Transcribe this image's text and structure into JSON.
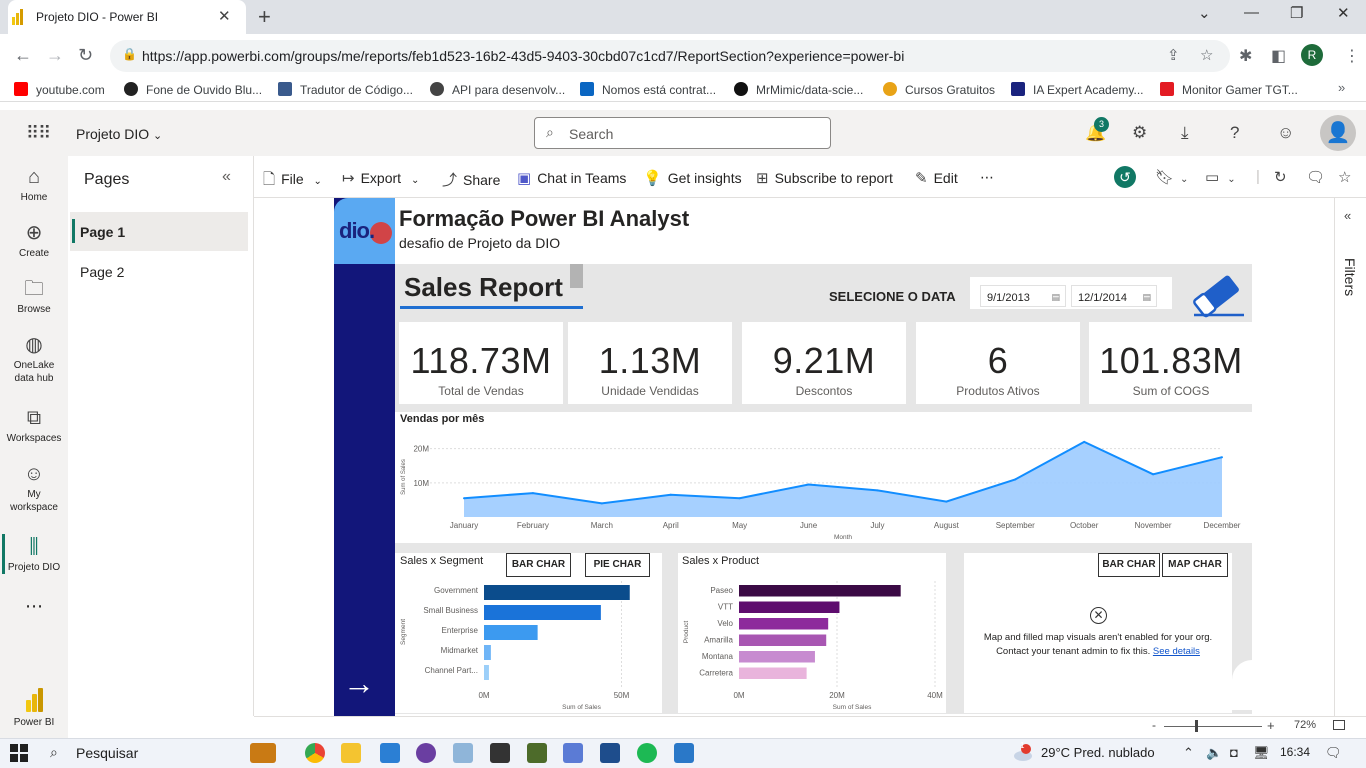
{
  "browser": {
    "tab_title": "Projeto DIO - Power BI",
    "url": "https://app.powerbi.com/groups/me/reports/feb1d523-16b2-43d5-9403-30cbd07c1cd7/ReportSection?experience=power-bi",
    "profile_initial": "R",
    "bookmarks": [
      {
        "label": "youtube.com",
        "color": "#ff0000"
      },
      {
        "label": "Fone de Ouvido Blu...",
        "color": "#222222"
      },
      {
        "label": "Tradutor de Código...",
        "color": "#3a5a8c"
      },
      {
        "label": "API para desenvolv...",
        "color": "#444444"
      },
      {
        "label": "Nomos está contrat...",
        "color": "#0a66c2"
      },
      {
        "label": "MrMimic/data-scie...",
        "color": "#111111"
      },
      {
        "label": "Cursos Gratuitos",
        "color": "#e8a317"
      },
      {
        "label": "IA Expert Academy...",
        "color": "#1a237e"
      },
      {
        "label": "Monitor Gamer TGT...",
        "color": "#e31b23"
      }
    ]
  },
  "pbi_header": {
    "workspace_title": "Projeto DIO",
    "search_placeholder": "Search",
    "notification_count": "3"
  },
  "left_nav": [
    {
      "label": "Home",
      "icon": "home-icon"
    },
    {
      "label": "Create",
      "icon": "plus-circle-icon"
    },
    {
      "label": "Browse",
      "icon": "folder-icon"
    },
    {
      "label": "OneLake data hub",
      "icon": "onelake-icon"
    },
    {
      "label": "Workspaces",
      "icon": "workspaces-icon"
    },
    {
      "label": "My workspace",
      "icon": "person-icon"
    },
    {
      "label": "Projeto DIO",
      "icon": "report-icon"
    }
  ],
  "brand_label": "Power BI",
  "pages_pane": {
    "title": "Pages",
    "pages": [
      "Page 1",
      "Page 2"
    ]
  },
  "toolbar": {
    "file": "File",
    "export": "Export",
    "share": "Share",
    "chat": "Chat in Teams",
    "insights": "Get insights",
    "subscribe": "Subscribe to report",
    "edit": "Edit"
  },
  "filters_label": "Filters",
  "report": {
    "title": "Formação Power BI Analyst",
    "subtitle": "desafio de Projeto da DIO",
    "logo_text": "dio.",
    "sales_title": "Sales Report",
    "date_label": "SELECIONE O DATA",
    "date_start": "9/1/2013",
    "date_end": "12/1/2014",
    "kpis": [
      {
        "value": "118.73M",
        "label": "Total de Vendas"
      },
      {
        "value": "1.13M",
        "label": "Unidade Vendidas"
      },
      {
        "value": "9.21M",
        "label": "Descontos"
      },
      {
        "value": "6",
        "label": "Produtos Ativos"
      },
      {
        "value": "101.83M",
        "label": "Sum of COGS"
      }
    ],
    "segment_title": "Sales x Segment",
    "product_title": "Sales x Product",
    "buttons": {
      "bar": "BAR CHAR",
      "pie": "PIE CHAR",
      "map": "MAP CHAR"
    },
    "map_message": "Map and filled map visuals aren't enabled for your org. Contact your tenant admin to fix this.",
    "map_link": "See details"
  },
  "chart_data": [
    {
      "type": "area",
      "title": "Vendas por mês",
      "xlabel": "Month",
      "ylabel": "Sum of Sales",
      "categories": [
        "January",
        "February",
        "March",
        "April",
        "May",
        "June",
        "July",
        "August",
        "September",
        "October",
        "November",
        "December"
      ],
      "values": [
        5.5,
        7,
        4,
        6.5,
        5.5,
        9.5,
        7.8,
        4.5,
        11,
        22,
        12.5,
        17.5
      ],
      "ylim": [
        0,
        24
      ],
      "yticks": [
        "10M",
        "20M"
      ],
      "color": "#118dff",
      "fill": "#9ccbff"
    },
    {
      "type": "bar",
      "orientation": "horizontal",
      "title": "Sales x Segment",
      "xlabel": "Sum of Sales",
      "ylabel": "Segment",
      "categories": [
        "Government",
        "Small Business",
        "Enterprise",
        "Midmarket",
        "Channel Part..."
      ],
      "values": [
        53,
        42.5,
        19.5,
        2.5,
        1.8
      ],
      "colors": [
        "#0b4c8c",
        "#1a73d9",
        "#3c9af0",
        "#6fb5f7",
        "#9ccff9"
      ],
      "xticks": [
        "0M",
        "50M"
      ],
      "xlim": [
        0,
        60
      ]
    },
    {
      "type": "bar",
      "orientation": "horizontal",
      "title": "Sales x Product",
      "xlabel": "Sum of Sales",
      "ylabel": "Product",
      "categories": [
        "Paseo",
        "VTT",
        "Velo",
        "Amarilla",
        "Montana",
        "Carretera"
      ],
      "values": [
        33,
        20.5,
        18.2,
        17.8,
        15.5,
        13.8
      ],
      "colors": [
        "#3b0a45",
        "#5e0c6e",
        "#8d2a9c",
        "#a856b2",
        "#c78bd0",
        "#e9b4dc"
      ],
      "xticks": [
        "0M",
        "20M",
        "40M"
      ],
      "xlim": [
        0,
        40
      ]
    }
  ],
  "statusbar": {
    "zoom": "72%"
  },
  "taskbar": {
    "search": "Pesquisar",
    "weather": "29°C  Pred. nublado",
    "time": "16:34",
    "weather_badge": "1"
  }
}
